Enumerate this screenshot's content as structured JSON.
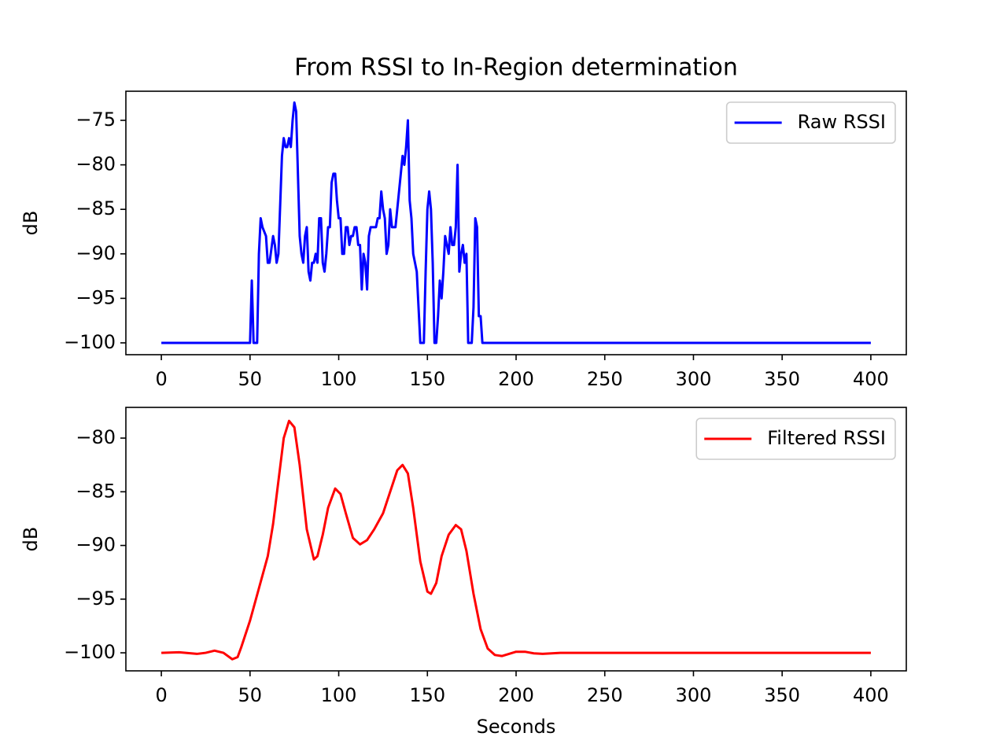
{
  "chart_data": [
    {
      "type": "line",
      "title": "From RSSI to In-Region determination",
      "ylabel": "dB",
      "x": [
        0,
        50,
        51,
        52,
        54,
        55,
        56,
        57,
        59,
        60,
        61,
        63,
        64,
        65,
        66,
        68,
        69,
        70,
        71,
        72,
        73,
        74,
        75,
        76,
        78,
        79,
        80,
        81,
        82,
        83,
        84,
        85,
        86,
        87,
        88,
        89,
        90,
        91,
        92,
        93,
        94,
        95,
        96,
        97,
        98,
        99,
        100,
        101,
        102,
        103,
        104,
        105,
        106,
        107,
        108,
        109,
        110,
        111,
        112,
        113,
        114,
        115,
        116,
        117,
        118,
        121,
        122,
        123,
        124,
        125,
        126,
        127,
        128,
        129,
        130,
        132,
        135,
        136,
        137,
        138,
        139,
        140,
        141,
        142,
        143,
        144,
        145,
        146,
        148,
        149,
        150,
        151,
        152,
        153,
        154,
        155,
        156,
        157,
        158,
        159,
        160,
        161,
        162,
        163,
        164,
        165,
        166,
        167,
        168,
        169,
        170,
        171,
        172,
        173,
        175,
        176,
        177,
        178,
        179,
        180,
        181,
        400
      ],
      "series": [
        {
          "name": "Raw RSSI",
          "color": "#0000ff",
          "values": [
            -100,
            -100,
            -93,
            -100,
            -100,
            -90,
            -86,
            -87,
            -88,
            -91,
            -91,
            -88,
            -89,
            -91,
            -90,
            -79,
            -77,
            -78,
            -78,
            -77,
            -78,
            -75,
            -73,
            -74,
            -88,
            -90,
            -91,
            -88,
            -87,
            -92,
            -93,
            -91,
            -91,
            -90,
            -91,
            -86,
            -86,
            -91,
            -92,
            -90,
            -87,
            -87,
            -82,
            -81,
            -81,
            -84,
            -86,
            -86,
            -90,
            -90,
            -87,
            -87,
            -89,
            -88,
            -88,
            -87,
            -87,
            -89,
            -89,
            -94,
            -90,
            -91,
            -94,
            -88,
            -87,
            -87,
            -86,
            -86,
            -83,
            -85,
            -86,
            -90,
            -89,
            -85,
            -87,
            -87,
            -81,
            -79,
            -80,
            -78,
            -75,
            -84,
            -86,
            -90,
            -91,
            -92,
            -96,
            -100,
            -100,
            -92,
            -85,
            -83,
            -85,
            -91,
            -100,
            -100,
            -97,
            -93,
            -95,
            -92,
            -88,
            -89,
            -90,
            -87,
            -89,
            -89,
            -87,
            -80,
            -92,
            -90,
            -89,
            -91,
            -90,
            -100,
            -100,
            -96,
            -86,
            -87,
            -97,
            -97,
            -100,
            -100
          ]
        }
      ],
      "xlim": [
        -20,
        420
      ],
      "ylim": [
        -101.33,
        -71.73
      ],
      "xticks": [
        0,
        50,
        100,
        150,
        200,
        250,
        300,
        350,
        400
      ],
      "yticks": [
        {
          "value": -100,
          "label": "−100"
        },
        {
          "value": -95,
          "label": "−95"
        },
        {
          "value": -90,
          "label": "−90"
        },
        {
          "value": -85,
          "label": "−85"
        },
        {
          "value": -80,
          "label": "−80"
        },
        {
          "value": -75,
          "label": "−75"
        }
      ],
      "legend": "upper right"
    },
    {
      "type": "line",
      "ylabel": "dB",
      "xlabel": "Seconds",
      "x": [
        0,
        10,
        20,
        25,
        30,
        35,
        40,
        43,
        45,
        50,
        55,
        60,
        63,
        66,
        69,
        72,
        75,
        78,
        82,
        86,
        88,
        91,
        94,
        98,
        101,
        104,
        108,
        112,
        116,
        120,
        125,
        130,
        133,
        136,
        139,
        142,
        146,
        150,
        152,
        155,
        158,
        162,
        166,
        169,
        172,
        176,
        180,
        184,
        188,
        192,
        196,
        200,
        205,
        210,
        215,
        225,
        400
      ],
      "series": [
        {
          "name": "Filtered RSSI",
          "color": "#ff0000",
          "values": [
            -100,
            -99.95,
            -100.1,
            -100,
            -99.8,
            -100,
            -100.6,
            -100.4,
            -99.5,
            -97,
            -94,
            -91,
            -88,
            -84,
            -80,
            -78.4,
            -79,
            -82.5,
            -88.5,
            -91.3,
            -91,
            -89,
            -86.5,
            -84.7,
            -85.2,
            -87,
            -89.3,
            -89.9,
            -89.5,
            -88.5,
            -87,
            -84.5,
            -83,
            -82.5,
            -83.3,
            -86.5,
            -91.5,
            -94.3,
            -94.5,
            -93.5,
            -91,
            -89,
            -88.1,
            -88.5,
            -90.5,
            -94.5,
            -97.8,
            -99.6,
            -100.2,
            -100.3,
            -100.1,
            -99.9,
            -99.9,
            -100.05,
            -100.1,
            -100,
            -100
          ]
        }
      ],
      "xlim": [
        -20,
        420
      ],
      "ylim": [
        -101.68,
        -77.14
      ],
      "xticks": [
        0,
        50,
        100,
        150,
        200,
        250,
        300,
        350,
        400
      ],
      "yticks": [
        {
          "value": -100,
          "label": "−100"
        },
        {
          "value": -95,
          "label": "−95"
        },
        {
          "value": -90,
          "label": "−90"
        },
        {
          "value": -85,
          "label": "−85"
        },
        {
          "value": -80,
          "label": "−80"
        }
      ],
      "legend": "upper right"
    }
  ]
}
